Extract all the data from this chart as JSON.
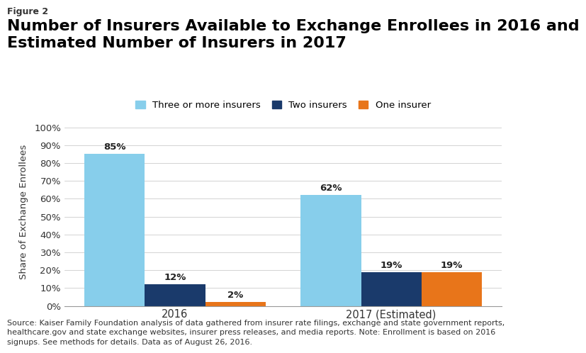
{
  "figure_label": "Figure 2",
  "title": "Number of Insurers Available to Exchange Enrollees in 2016 and\nEstimated Number of Insurers in 2017",
  "ylabel": "Share of Exchange Enrollees",
  "categories": [
    "2016",
    "2017 (Estimated)"
  ],
  "series": [
    {
      "label": "Three or more insurers",
      "values": [
        85,
        62
      ],
      "color": "#87CEEB"
    },
    {
      "label": "Two insurers",
      "values": [
        12,
        19
      ],
      "color": "#1A3A6B"
    },
    {
      "label": "One insurer",
      "values": [
        2,
        19
      ],
      "color": "#E8751A"
    }
  ],
  "bar_width": 0.12,
  "ylim": [
    0,
    105
  ],
  "yticks": [
    0,
    10,
    20,
    30,
    40,
    50,
    60,
    70,
    80,
    90,
    100
  ],
  "ytick_labels": [
    "0%",
    "10%",
    "20%",
    "30%",
    "40%",
    "50%",
    "60%",
    "70%",
    "80%",
    "90%",
    "100%"
  ],
  "group_centers": [
    0.22,
    0.65
  ],
  "footnote": "Source: Kaiser Family Foundation analysis of data gathered from insurer rate filings, exchange and state government reports,\nhealthcare.gov and state exchange websites, insurer press releases, and media reports. Note: Enrollment is based on 2016\nsignups. See methods for details. Data as of August 26, 2016.",
  "background_color": "#FFFFFF",
  "title_color": "#000000",
  "figure_label_color": "#333333",
  "annotation_fontsize": 9.5,
  "title_fontsize": 16,
  "label_fontsize": 9.5,
  "tick_fontsize": 9.5,
  "legend_fontsize": 9.5,
  "footnote_fontsize": 8.0
}
